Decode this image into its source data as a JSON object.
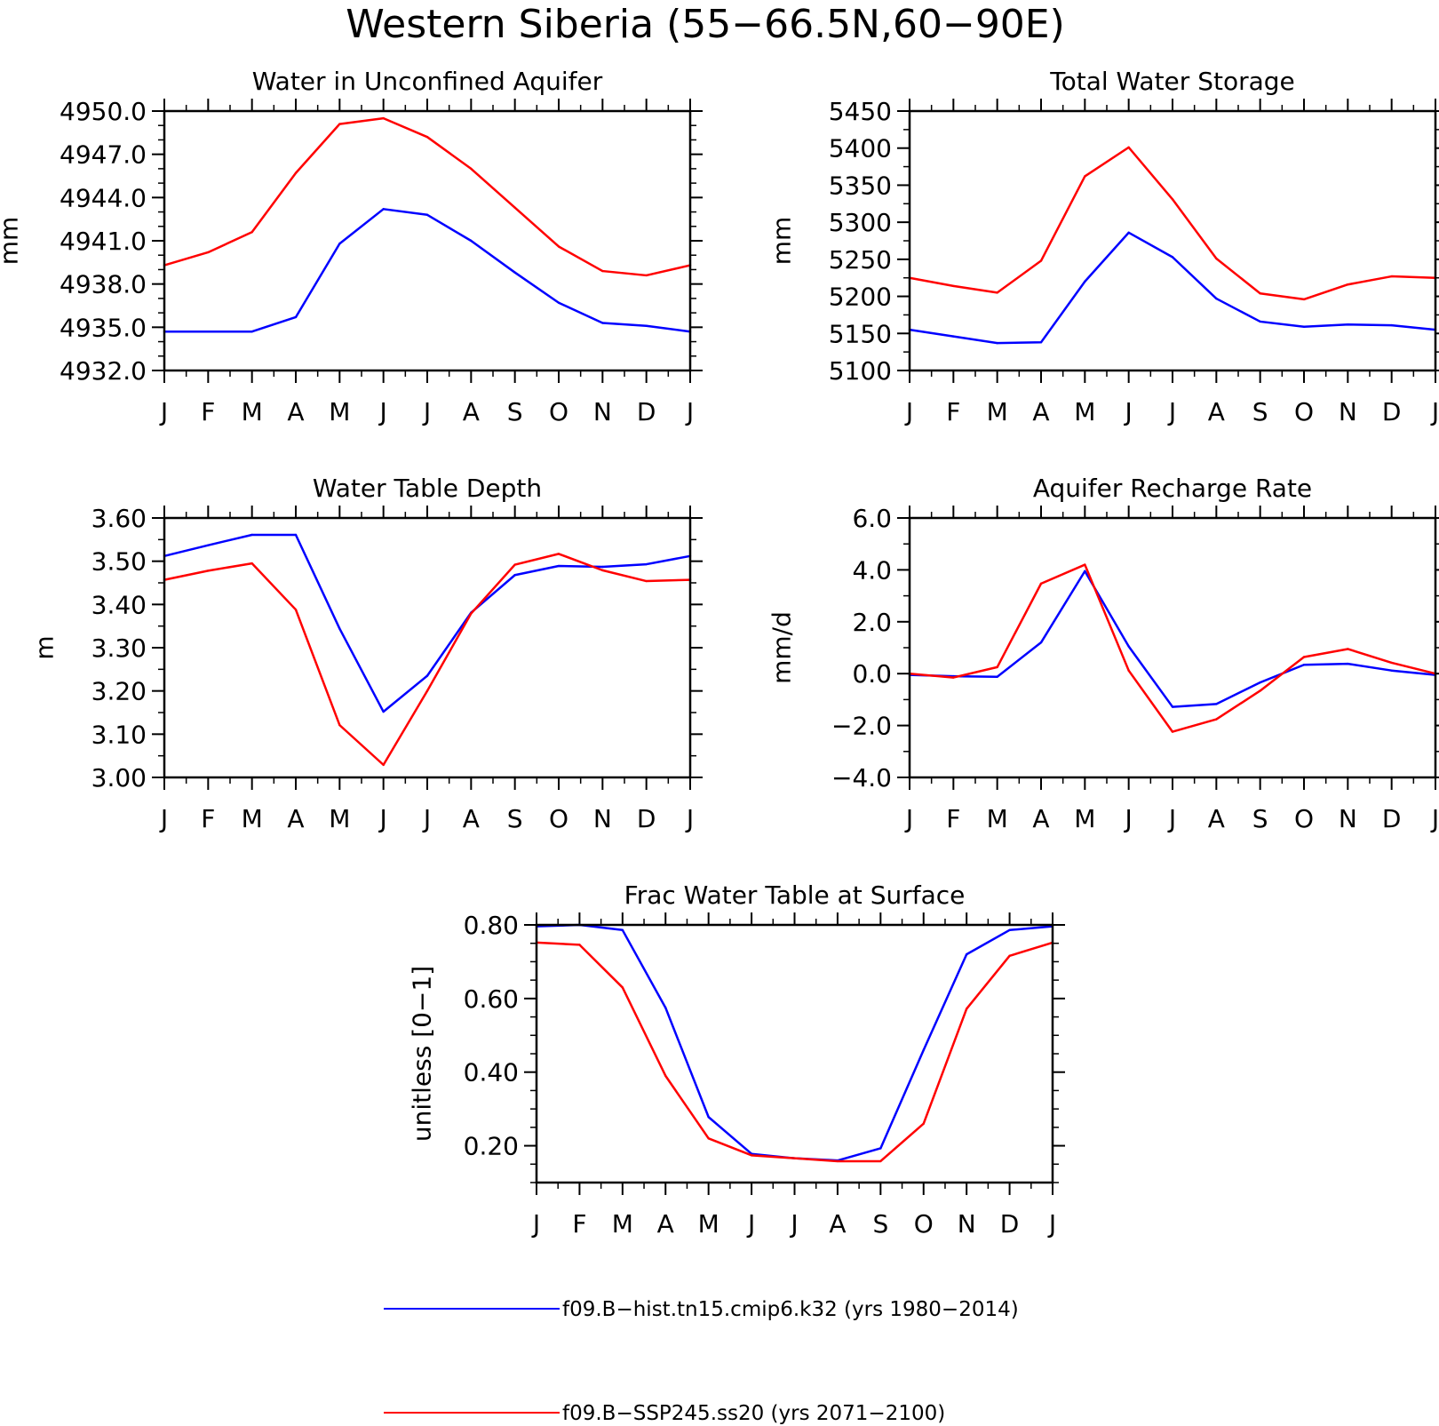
{
  "figure_title": "Western Siberia (55−66.5N,60−90E)",
  "months": [
    "J",
    "F",
    "M",
    "A",
    "M",
    "J",
    "J",
    "A",
    "S",
    "O",
    "N",
    "D",
    "J"
  ],
  "legend": [
    {
      "label": "f09.B−hist.tn15.cmip6.k32 (yrs 1980−2014)",
      "color": "#0000ff"
    },
    {
      "label": "f09.B−SSP245.ss20 (yrs 2071−2100)",
      "color": "#ff0000"
    }
  ],
  "chart_data": [
    {
      "type": "line",
      "title": "Water in Unconfined Aquifer",
      "ylabel": "mm",
      "categories": [
        "J",
        "F",
        "M",
        "A",
        "M",
        "J",
        "J",
        "A",
        "S",
        "O",
        "N",
        "D",
        "J"
      ],
      "ylim": [
        4932.0,
        4950.0
      ],
      "yticks": [
        4932.0,
        4935.0,
        4938.0,
        4941.0,
        4944.0,
        4947.0,
        4950.0
      ],
      "yticklabels": [
        "4932.0",
        "4935.0",
        "4938.0",
        "4941.0",
        "4944.0",
        "4947.0",
        "4950.0"
      ],
      "yminor": 1.0,
      "series": [
        {
          "name": "f09.B−hist.tn15.cmip6.k32 (yrs 1980−2014)",
          "color": "#0000ff",
          "values": [
            4934.7,
            4934.7,
            4934.7,
            4935.7,
            4940.8,
            4943.2,
            4942.8,
            4941.0,
            4938.8,
            4936.7,
            4935.3,
            4935.1,
            4934.7
          ]
        },
        {
          "name": "f09.B−SSP245.ss20 (yrs 2071−2100)",
          "color": "#ff0000",
          "values": [
            4939.3,
            4940.2,
            4941.6,
            4945.7,
            4949.1,
            4949.5,
            4948.2,
            4946.0,
            4943.3,
            4940.6,
            4938.9,
            4938.6,
            4939.3
          ]
        }
      ]
    },
    {
      "type": "line",
      "title": "Total Water Storage",
      "ylabel": "mm",
      "categories": [
        "J",
        "F",
        "M",
        "A",
        "M",
        "J",
        "J",
        "A",
        "S",
        "O",
        "N",
        "D",
        "J"
      ],
      "ylim": [
        5100,
        5450
      ],
      "yticks": [
        5100,
        5150,
        5200,
        5250,
        5300,
        5350,
        5400,
        5450
      ],
      "yticklabels": [
        "5100",
        "5150",
        "5200",
        "5250",
        "5300",
        "5350",
        "5400",
        "5450"
      ],
      "yminor": 25,
      "series": [
        {
          "name": "f09.B−hist.tn15.cmip6.k32 (yrs 1980−2014)",
          "color": "#0000ff",
          "values": [
            5155,
            5146,
            5137,
            5138,
            5220,
            5286,
            5253,
            5197,
            5166,
            5159,
            5162,
            5161,
            5155
          ]
        },
        {
          "name": "f09.B−SSP245.ss20 (yrs 2071−2100)",
          "color": "#ff0000",
          "values": [
            5225,
            5214,
            5205,
            5248,
            5362,
            5401,
            5331,
            5251,
            5204,
            5196,
            5216,
            5227,
            5225
          ]
        }
      ]
    },
    {
      "type": "line",
      "title": "Water Table Depth",
      "ylabel": "m",
      "categories": [
        "J",
        "F",
        "M",
        "A",
        "M",
        "J",
        "J",
        "A",
        "S",
        "O",
        "N",
        "D",
        "J"
      ],
      "ylim": [
        3.0,
        3.6
      ],
      "yticks": [
        3.0,
        3.1,
        3.2,
        3.3,
        3.4,
        3.5,
        3.6
      ],
      "yticklabels": [
        "3.00",
        "3.10",
        "3.20",
        "3.30",
        "3.40",
        "3.50",
        "3.60"
      ],
      "yminor": 0.05,
      "series": [
        {
          "name": "f09.B−hist.tn15.cmip6.k32 (yrs 1980−2014)",
          "color": "#0000ff",
          "values": [
            3.512,
            3.537,
            3.561,
            3.561,
            3.344,
            3.152,
            3.235,
            3.381,
            3.468,
            3.489,
            3.487,
            3.493,
            3.512
          ]
        },
        {
          "name": "f09.B−SSP245.ss20 (yrs 2071−2100)",
          "color": "#ff0000",
          "values": [
            3.457,
            3.478,
            3.495,
            3.388,
            3.121,
            3.029,
            3.2,
            3.379,
            3.492,
            3.517,
            3.479,
            3.454,
            3.457
          ]
        }
      ]
    },
    {
      "type": "line",
      "title": "Aquifer Recharge Rate",
      "ylabel": "mm/d",
      "categories": [
        "J",
        "F",
        "M",
        "A",
        "M",
        "J",
        "J",
        "A",
        "S",
        "O",
        "N",
        "D",
        "J"
      ],
      "ylim": [
        -4.0,
        6.0
      ],
      "yticks": [
        -4.0,
        -2.0,
        0.0,
        2.0,
        4.0,
        6.0
      ],
      "yticklabels": [
        "−4.0",
        "−2.0",
        "0.0",
        "2.0",
        "4.0",
        "6.0"
      ],
      "yminor": 1.0,
      "series": [
        {
          "name": "f09.B−hist.tn15.cmip6.k32 (yrs 1980−2014)",
          "color": "#0000ff",
          "values": [
            -0.05,
            -0.1,
            -0.12,
            1.2,
            3.95,
            1.05,
            -1.28,
            -1.17,
            -0.34,
            0.34,
            0.38,
            0.12,
            -0.05
          ]
        },
        {
          "name": "f09.B−SSP245.ss20 (yrs 2071−2100)",
          "color": "#ff0000",
          "values": [
            0.0,
            -0.15,
            0.25,
            3.47,
            4.2,
            0.12,
            -2.24,
            -1.76,
            -0.66,
            0.64,
            0.95,
            0.42,
            0.0
          ]
        }
      ]
    },
    {
      "type": "line",
      "title": "Frac Water Table at Surface",
      "ylabel": "unitless [0−1]",
      "categories": [
        "J",
        "F",
        "M",
        "A",
        "M",
        "J",
        "J",
        "A",
        "S",
        "O",
        "N",
        "D",
        "J"
      ],
      "ylim": [
        0.1,
        0.8
      ],
      "yticks": [
        0.2,
        0.4,
        0.6,
        0.8
      ],
      "yticklabels": [
        "0.20",
        "0.40",
        "0.60",
        "0.80"
      ],
      "yminor": 0.05,
      "series": [
        {
          "name": "f09.B−hist.tn15.cmip6.k32 (yrs 1980−2014)",
          "color": "#0000ff",
          "values": [
            0.796,
            0.8,
            0.786,
            0.575,
            0.278,
            0.178,
            0.166,
            0.16,
            0.193,
            0.46,
            0.72,
            0.786,
            0.796
          ]
        },
        {
          "name": "f09.B−SSP245.ss20 (yrs 2071−2100)",
          "color": "#ff0000",
          "values": [
            0.752,
            0.746,
            0.63,
            0.39,
            0.22,
            0.174,
            0.166,
            0.158,
            0.158,
            0.26,
            0.572,
            0.716,
            0.752
          ]
        }
      ]
    }
  ]
}
